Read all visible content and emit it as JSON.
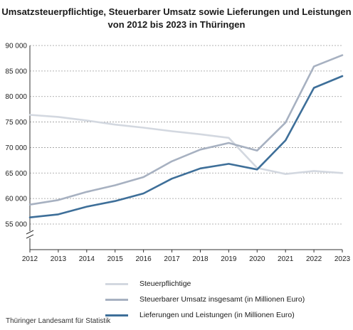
{
  "chart_data": {
    "type": "line",
    "title_lines": [
      "Umsatzsteuerpflichtige, Steuerbarer Umsatz sowie Lieferungen und Leistungen",
      "von 2012 bis 2023 in Thüringen"
    ],
    "xlabel": "",
    "ylabel": "",
    "x": [
      "2012",
      "2013",
      "2014",
      "2015",
      "2016",
      "2017",
      "2018",
      "2019",
      "2020",
      "2021",
      "2022",
      "2023"
    ],
    "ylim": [
      55000,
      90000
    ],
    "yticks": [
      55000,
      60000,
      65000,
      70000,
      75000,
      80000,
      85000,
      90000
    ],
    "ytick_labels": [
      "55 000",
      "60 000",
      "65 000",
      "70 000",
      "75 000",
      "80 000",
      "85 000",
      "90 000"
    ],
    "axis_break": true,
    "grid": true,
    "legend_position": "bottom",
    "series": [
      {
        "name": "Steuerpflichtige",
        "color": "#d3d8e0",
        "values": [
          76400,
          76000,
          75300,
          74500,
          73900,
          73200,
          72600,
          71900,
          66000,
          64800,
          65400,
          65000
        ]
      },
      {
        "name": "Steuerbarer Umsatz insgesamt (in Millionen Euro)",
        "color": "#a7b1c1",
        "values": [
          58800,
          59700,
          61300,
          62600,
          64200,
          67300,
          69600,
          70900,
          69400,
          74900,
          85900,
          88100
        ]
      },
      {
        "name": "Lieferungen und Leistungen (in Millionen Euro)",
        "color": "#3e6f99",
        "values": [
          56300,
          56900,
          58400,
          59500,
          61000,
          63900,
          65900,
          66800,
          65700,
          71400,
          81700,
          84000
        ]
      }
    ]
  },
  "source": "Thüringer Landesamt für Statistik"
}
